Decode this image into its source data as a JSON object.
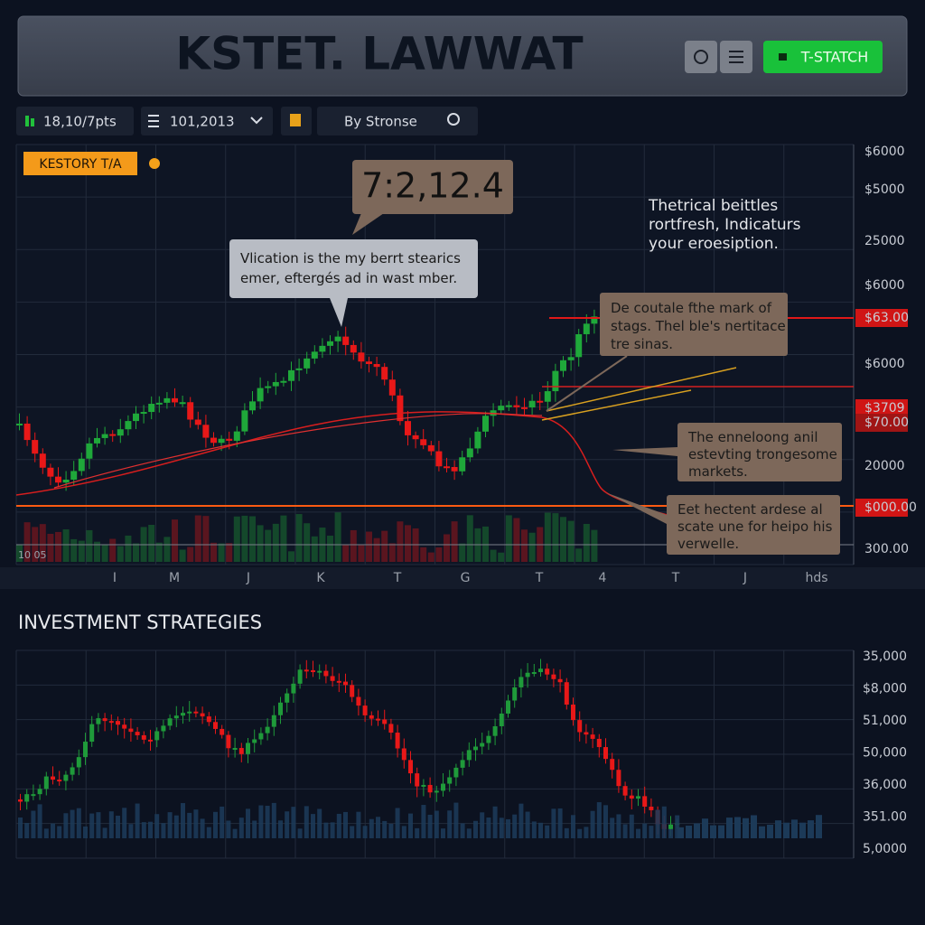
{
  "header": {
    "title": "KSTET. LAWWAT",
    "button": "T-STATCH"
  },
  "toolbar": {
    "interval": "18,10/7pts",
    "date": "101,2013",
    "sort": "By Stronse"
  },
  "main_chart": {
    "badge": "KESTORY T/A",
    "price_callout": "7:2,12.4",
    "tooltip": [
      "Vlication is the my berrt stearics",
      "emer, eftergés ad in wast mber."
    ],
    "note": [
      "Thetrical beittles",
      "rortfresh, Indicaturs",
      "your eroesiption."
    ],
    "box_1": [
      "De coutale fthe mark of",
      "stags. Thel ble's nertitace",
      "tre sinas."
    ],
    "box_2": [
      "The enneloong anil",
      "estevting trongesome",
      "markets."
    ],
    "box_3": [
      "Eet hectent ardese al",
      "scate une for heipo his",
      "verwelle."
    ],
    "y_labels": [
      "$6000",
      "$5000",
      "25000",
      "$6000",
      "$63.00",
      "$6000",
      "$3709",
      "$70.00",
      "20000",
      "$000.00",
      "300.00"
    ],
    "x_labels": [
      "I",
      "M",
      "J",
      "K",
      "T",
      "G",
      "T",
      "4",
      "T",
      "J",
      "hds"
    ],
    "corner_label": "10 05"
  },
  "strategies": {
    "title": "INVESTMENT STRATEGIES",
    "y_labels": [
      "35,000",
      "$8,000",
      "51,000",
      "50,000",
      "36,000",
      "351.00",
      "5,0000"
    ]
  }
}
